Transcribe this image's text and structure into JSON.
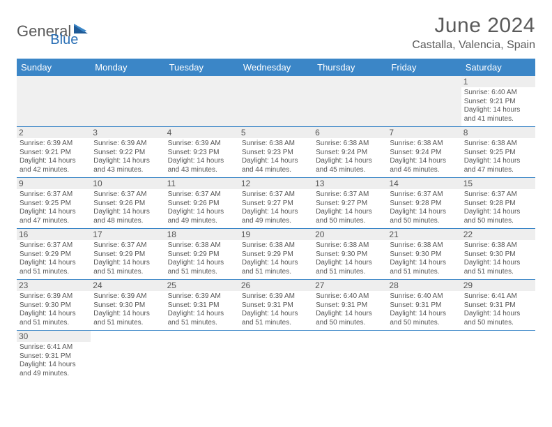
{
  "logo": {
    "text1": "General",
    "text2": "Blue"
  },
  "header": {
    "month": "June 2024",
    "location": "Castalla, Valencia, Spain"
  },
  "colors": {
    "header_bg": "#3b86c7",
    "header_fg": "#ffffff",
    "row_border": "#3b86c7",
    "daynum_bg": "#eeeeee",
    "text": "#555555",
    "logo_gray": "#5a5a5a",
    "logo_blue": "#2a6fb5"
  },
  "weekdays": [
    "Sunday",
    "Monday",
    "Tuesday",
    "Wednesday",
    "Thursday",
    "Friday",
    "Saturday"
  ],
  "grid": [
    [
      null,
      null,
      null,
      null,
      null,
      null,
      {
        "n": "1",
        "sr": "Sunrise: 6:40 AM",
        "ss": "Sunset: 9:21 PM",
        "d1": "Daylight: 14 hours",
        "d2": "and 41 minutes."
      }
    ],
    [
      {
        "n": "2",
        "sr": "Sunrise: 6:39 AM",
        "ss": "Sunset: 9:21 PM",
        "d1": "Daylight: 14 hours",
        "d2": "and 42 minutes."
      },
      {
        "n": "3",
        "sr": "Sunrise: 6:39 AM",
        "ss": "Sunset: 9:22 PM",
        "d1": "Daylight: 14 hours",
        "d2": "and 43 minutes."
      },
      {
        "n": "4",
        "sr": "Sunrise: 6:39 AM",
        "ss": "Sunset: 9:23 PM",
        "d1": "Daylight: 14 hours",
        "d2": "and 43 minutes."
      },
      {
        "n": "5",
        "sr": "Sunrise: 6:38 AM",
        "ss": "Sunset: 9:23 PM",
        "d1": "Daylight: 14 hours",
        "d2": "and 44 minutes."
      },
      {
        "n": "6",
        "sr": "Sunrise: 6:38 AM",
        "ss": "Sunset: 9:24 PM",
        "d1": "Daylight: 14 hours",
        "d2": "and 45 minutes."
      },
      {
        "n": "7",
        "sr": "Sunrise: 6:38 AM",
        "ss": "Sunset: 9:24 PM",
        "d1": "Daylight: 14 hours",
        "d2": "and 46 minutes."
      },
      {
        "n": "8",
        "sr": "Sunrise: 6:38 AM",
        "ss": "Sunset: 9:25 PM",
        "d1": "Daylight: 14 hours",
        "d2": "and 47 minutes."
      }
    ],
    [
      {
        "n": "9",
        "sr": "Sunrise: 6:37 AM",
        "ss": "Sunset: 9:25 PM",
        "d1": "Daylight: 14 hours",
        "d2": "and 47 minutes."
      },
      {
        "n": "10",
        "sr": "Sunrise: 6:37 AM",
        "ss": "Sunset: 9:26 PM",
        "d1": "Daylight: 14 hours",
        "d2": "and 48 minutes."
      },
      {
        "n": "11",
        "sr": "Sunrise: 6:37 AM",
        "ss": "Sunset: 9:26 PM",
        "d1": "Daylight: 14 hours",
        "d2": "and 49 minutes."
      },
      {
        "n": "12",
        "sr": "Sunrise: 6:37 AM",
        "ss": "Sunset: 9:27 PM",
        "d1": "Daylight: 14 hours",
        "d2": "and 49 minutes."
      },
      {
        "n": "13",
        "sr": "Sunrise: 6:37 AM",
        "ss": "Sunset: 9:27 PM",
        "d1": "Daylight: 14 hours",
        "d2": "and 50 minutes."
      },
      {
        "n": "14",
        "sr": "Sunrise: 6:37 AM",
        "ss": "Sunset: 9:28 PM",
        "d1": "Daylight: 14 hours",
        "d2": "and 50 minutes."
      },
      {
        "n": "15",
        "sr": "Sunrise: 6:37 AM",
        "ss": "Sunset: 9:28 PM",
        "d1": "Daylight: 14 hours",
        "d2": "and 50 minutes."
      }
    ],
    [
      {
        "n": "16",
        "sr": "Sunrise: 6:37 AM",
        "ss": "Sunset: 9:29 PM",
        "d1": "Daylight: 14 hours",
        "d2": "and 51 minutes."
      },
      {
        "n": "17",
        "sr": "Sunrise: 6:37 AM",
        "ss": "Sunset: 9:29 PM",
        "d1": "Daylight: 14 hours",
        "d2": "and 51 minutes."
      },
      {
        "n": "18",
        "sr": "Sunrise: 6:38 AM",
        "ss": "Sunset: 9:29 PM",
        "d1": "Daylight: 14 hours",
        "d2": "and 51 minutes."
      },
      {
        "n": "19",
        "sr": "Sunrise: 6:38 AM",
        "ss": "Sunset: 9:29 PM",
        "d1": "Daylight: 14 hours",
        "d2": "and 51 minutes."
      },
      {
        "n": "20",
        "sr": "Sunrise: 6:38 AM",
        "ss": "Sunset: 9:30 PM",
        "d1": "Daylight: 14 hours",
        "d2": "and 51 minutes."
      },
      {
        "n": "21",
        "sr": "Sunrise: 6:38 AM",
        "ss": "Sunset: 9:30 PM",
        "d1": "Daylight: 14 hours",
        "d2": "and 51 minutes."
      },
      {
        "n": "22",
        "sr": "Sunrise: 6:38 AM",
        "ss": "Sunset: 9:30 PM",
        "d1": "Daylight: 14 hours",
        "d2": "and 51 minutes."
      }
    ],
    [
      {
        "n": "23",
        "sr": "Sunrise: 6:39 AM",
        "ss": "Sunset: 9:30 PM",
        "d1": "Daylight: 14 hours",
        "d2": "and 51 minutes."
      },
      {
        "n": "24",
        "sr": "Sunrise: 6:39 AM",
        "ss": "Sunset: 9:30 PM",
        "d1": "Daylight: 14 hours",
        "d2": "and 51 minutes."
      },
      {
        "n": "25",
        "sr": "Sunrise: 6:39 AM",
        "ss": "Sunset: 9:31 PM",
        "d1": "Daylight: 14 hours",
        "d2": "and 51 minutes."
      },
      {
        "n": "26",
        "sr": "Sunrise: 6:39 AM",
        "ss": "Sunset: 9:31 PM",
        "d1": "Daylight: 14 hours",
        "d2": "and 51 minutes."
      },
      {
        "n": "27",
        "sr": "Sunrise: 6:40 AM",
        "ss": "Sunset: 9:31 PM",
        "d1": "Daylight: 14 hours",
        "d2": "and 50 minutes."
      },
      {
        "n": "28",
        "sr": "Sunrise: 6:40 AM",
        "ss": "Sunset: 9:31 PM",
        "d1": "Daylight: 14 hours",
        "d2": "and 50 minutes."
      },
      {
        "n": "29",
        "sr": "Sunrise: 6:41 AM",
        "ss": "Sunset: 9:31 PM",
        "d1": "Daylight: 14 hours",
        "d2": "and 50 minutes."
      }
    ],
    [
      {
        "n": "30",
        "sr": "Sunrise: 6:41 AM",
        "ss": "Sunset: 9:31 PM",
        "d1": "Daylight: 14 hours",
        "d2": "and 49 minutes."
      },
      null,
      null,
      null,
      null,
      null,
      null
    ]
  ]
}
